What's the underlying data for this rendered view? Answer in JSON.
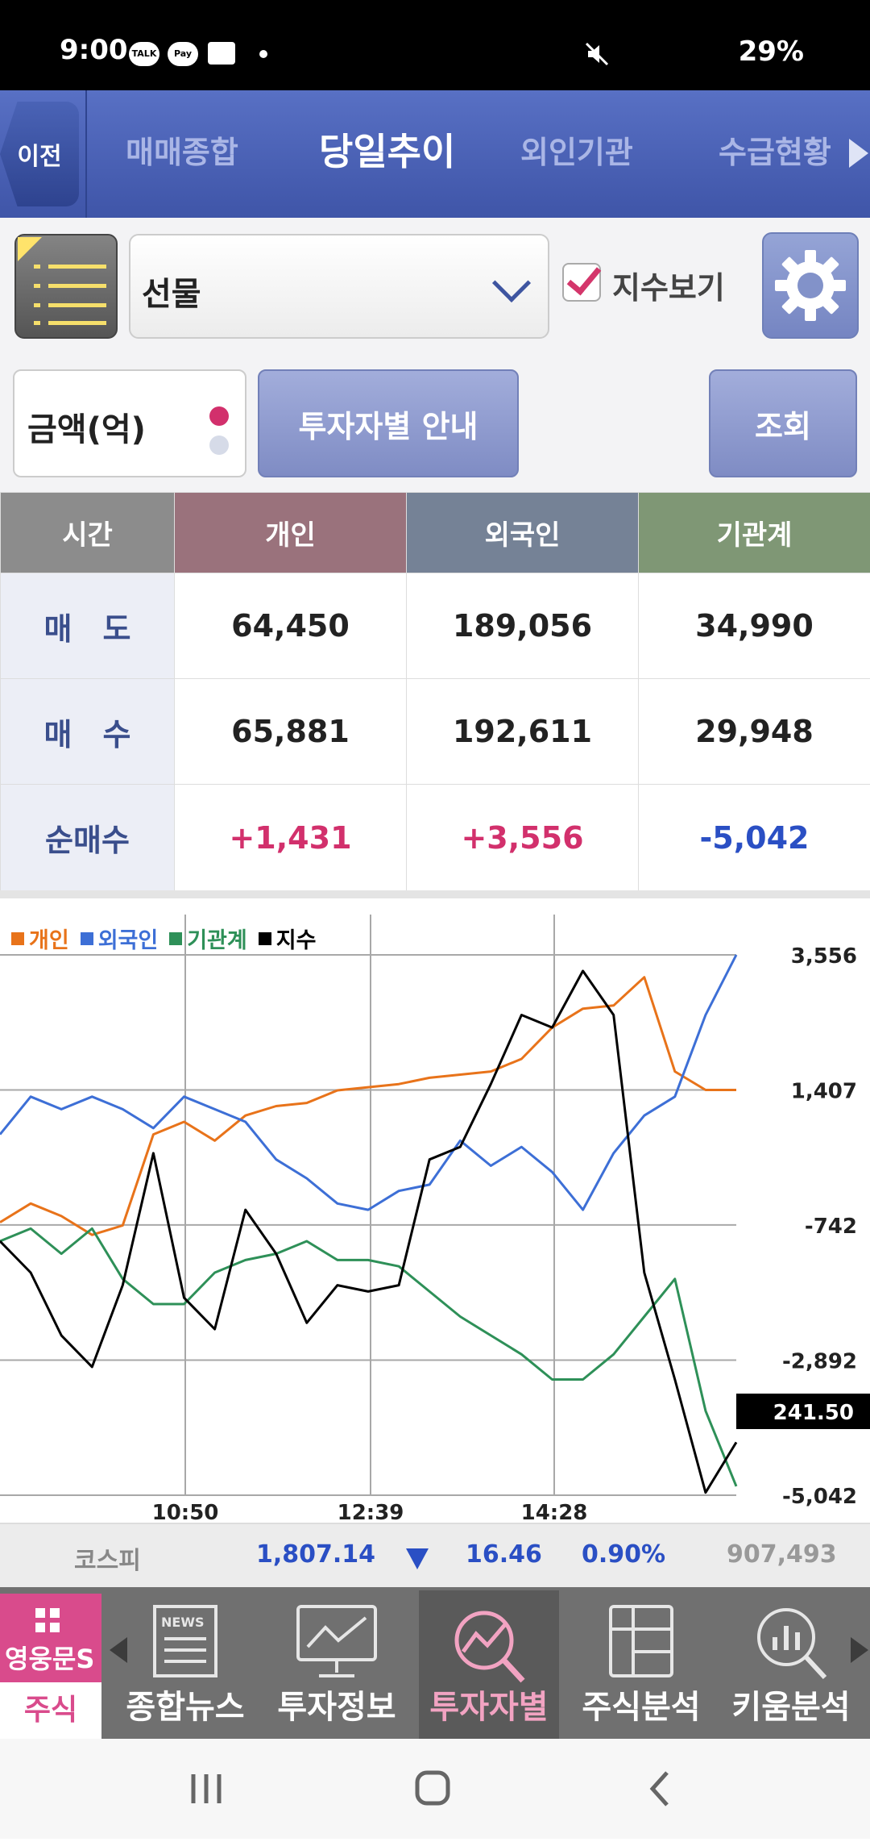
{
  "status_bar": {
    "time": "9:00",
    "icons": [
      "talk-icon",
      "pay-icon",
      "message-icon",
      "dot-icon"
    ],
    "talk_label": "TALK",
    "pay_label": "Pay",
    "battery": "29%"
  },
  "top_nav": {
    "back_label": "이전",
    "tabs": [
      {
        "label": "매매종합",
        "active": false
      },
      {
        "label": "당일추이",
        "active": true
      },
      {
        "label": "외인기관",
        "active": false
      },
      {
        "label": "수급현황",
        "active": false
      }
    ]
  },
  "toolbar": {
    "select_value": "선물",
    "checkbox_label": "지수보기",
    "checkbox_checked": true
  },
  "toolbar2": {
    "unit_label": "금액(억)",
    "guide_button": "투자자별 안내",
    "query_button": "조회"
  },
  "table": {
    "headers": [
      "시간",
      "개인",
      "외국인",
      "기관계"
    ],
    "header_colors": [
      "#8c8c8c",
      "#9a727c",
      "#758296",
      "#7f9775"
    ],
    "rows": [
      {
        "label": "매　도",
        "values": [
          "64,450",
          "189,056",
          "34,990"
        ]
      },
      {
        "label": "매　수",
        "values": [
          "65,881",
          "192,611",
          "29,948"
        ]
      },
      {
        "label": "순매수",
        "values": [
          "+1,431",
          "+3,556",
          "-5,042"
        ]
      }
    ]
  },
  "chart_data": {
    "type": "line",
    "legend": [
      {
        "name": "개인",
        "color": "#e8731a"
      },
      {
        "name": "외국인",
        "color": "#3d6fd6"
      },
      {
        "name": "기관계",
        "color": "#2e9058"
      },
      {
        "name": "지수",
        "color": "#000000"
      }
    ],
    "y_ticks": [
      "3,556",
      "1,407",
      "-742",
      "-2,892",
      "-5,042"
    ],
    "ylim": [
      -5042,
      3556
    ],
    "x_ticks": [
      "10:50",
      "12:39",
      "14:28"
    ],
    "current_value_label": "241.50",
    "series": [
      {
        "name": "개인",
        "values": [
          -700,
          -400,
          -600,
          -900,
          -750,
          700,
          900,
          600,
          1000,
          1150,
          1200,
          1400,
          1450,
          1500,
          1600,
          1650,
          1700,
          1900,
          2400,
          2700,
          2750,
          3200,
          1700,
          1407,
          1407
        ]
      },
      {
        "name": "외국인",
        "values": [
          700,
          1300,
          1100,
          1300,
          1100,
          800,
          1300,
          1100,
          900,
          300,
          0,
          -400,
          -500,
          -200,
          -100,
          600,
          200,
          500,
          100,
          -500,
          400,
          1000,
          1300,
          2600,
          3556
        ]
      },
      {
        "name": "기관계",
        "values": [
          -1000,
          -800,
          -1200,
          -800,
          -1600,
          -2000,
          -2000,
          -1500,
          -1300,
          -1200,
          -1000,
          -1300,
          -1300,
          -1400,
          -1800,
          -2200,
          -2500,
          -2800,
          -3200,
          -3200,
          -2800,
          -2200,
          -1600,
          -3700,
          -4900
        ]
      },
      {
        "name": "지수",
        "values": [
          -1000,
          -1500,
          -2500,
          -3000,
          -1700,
          400,
          -1900,
          -2400,
          -500,
          -1200,
          -2300,
          -1700,
          -1800,
          -1700,
          300,
          500,
          1500,
          2600,
          2400,
          3300,
          2600,
          -1500,
          -3200,
          -5000,
          -4200
        ]
      }
    ]
  },
  "footer": {
    "index_name": "코스피",
    "index_value": "1,807.14",
    "change": "16.46",
    "change_pct": "0.90%",
    "volume": "907,493"
  },
  "bottom_nav": {
    "brand": "영웅문S",
    "brand_sub": "주식",
    "news_badge": "NEWS",
    "items": [
      "종합뉴스",
      "투자정보",
      "투자자별",
      "주식분석",
      "키움분석"
    ],
    "active_index": 2
  },
  "colors": {
    "positive": "#d2306c",
    "negative": "#2a4fc4",
    "nav_active": "#f2a3c2",
    "brand_pink": "#d94b8c"
  }
}
